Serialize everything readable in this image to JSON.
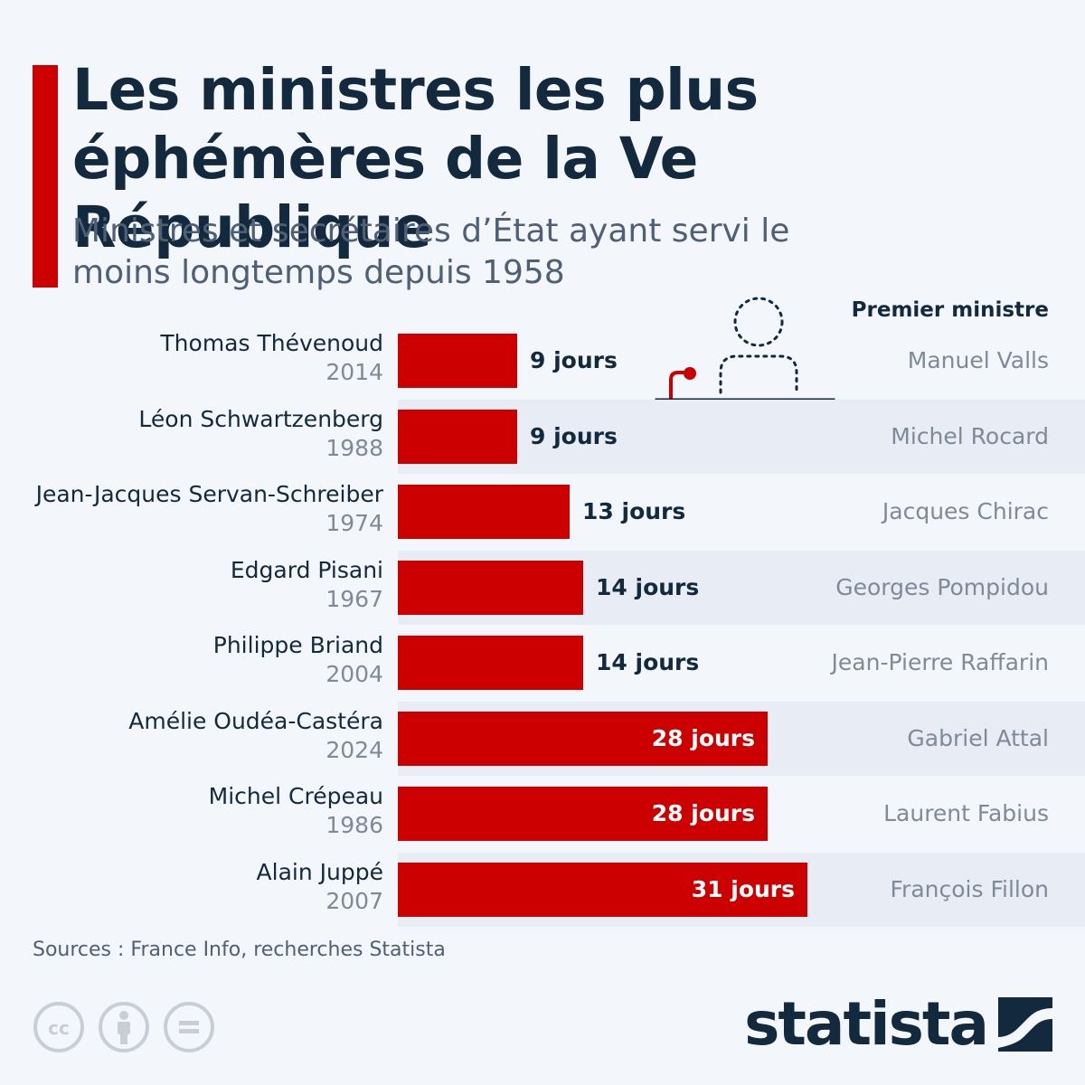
{
  "title": "Les ministres les plus éphémères de la Ve République",
  "subtitle": "Ministres et secrétaires d’État ayant servi le moins longtemps depuis 1958",
  "column_header": "Premier ministre",
  "source": "Sources : France Info, recherches Statista",
  "brand": {
    "name": "statista",
    "accent": "#cc0000",
    "text": "#13293d"
  },
  "icons": [
    "cc-icon",
    "attribution-icon",
    "no-derivatives-icon",
    "statista-logo-icon",
    "podium-minister-icon"
  ],
  "chart_data": {
    "type": "bar",
    "orientation": "horizontal",
    "unit": "jours",
    "xlim": [
      0,
      31
    ],
    "categories": [
      "Thomas Thévenoud",
      "Léon Schwartzenberg",
      "Jean-Jacques Servan-Schreiber",
      "Edgard Pisani",
      "Philippe Briand",
      "Amélie Oudéa-Castéra",
      "Michel Crépeau",
      "Alain Juppé"
    ],
    "years": [
      "2014",
      "1988",
      "1974",
      "1967",
      "2004",
      "2024",
      "1986",
      "2007"
    ],
    "values": [
      9,
      9,
      13,
      14,
      14,
      28,
      28,
      31
    ],
    "value_labels": [
      "9 jours",
      "9 jours",
      "13 jours",
      "14 jours",
      "14 jours",
      "28 jours",
      "28 jours",
      "31 jours"
    ],
    "premiers_ministres": [
      "Manuel Valls",
      "Michel Rocard",
      "Jacques Chirac",
      "Georges Pompidou",
      "Jean-Pierre Raffarin",
      "Gabriel Attal",
      "Laurent Fabius",
      "François Fillon"
    ]
  }
}
